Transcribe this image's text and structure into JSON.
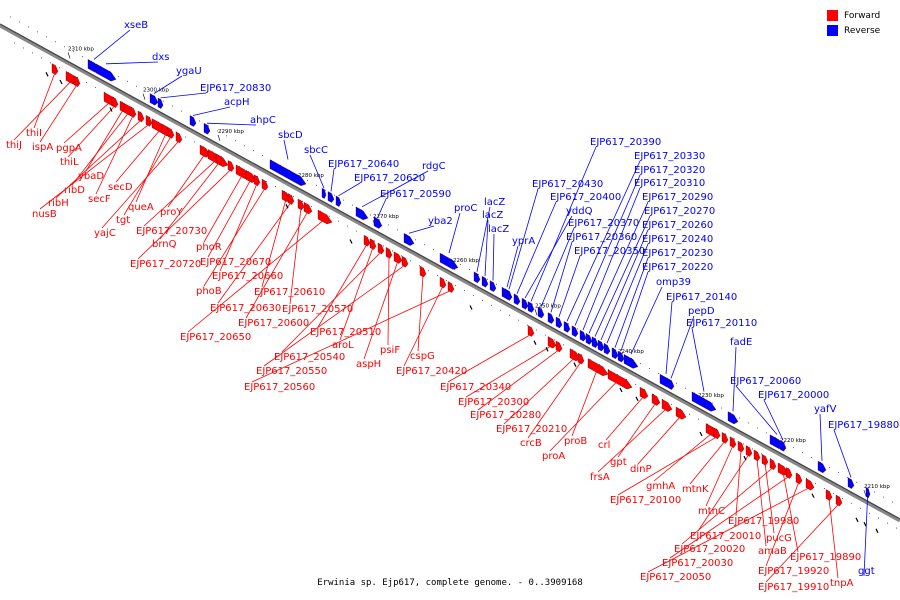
{
  "caption": "Erwinia sp. Ejp617, complete genome. - 0..3909168",
  "legend": {
    "forward": {
      "label": "Forward",
      "color": "#ff0000"
    },
    "reverse": {
      "label": "Reverse",
      "color": "#0000ff"
    }
  },
  "axis_ticks": [
    "2310 kbp",
    "2300 kbp",
    "2290 kbp",
    "2280 kbp",
    "2270 kbp",
    "2260 kbp",
    "2250 kbp",
    "2240 kbp",
    "2230 kbp",
    "2220 kbp",
    "2210 kbp"
  ],
  "genes_reverse": [
    "xseB",
    "dxs",
    "ygaU",
    "EJP617_20830",
    "acpH",
    "ahpC",
    "sbcD",
    "sbcC",
    "EJP617_20640",
    "EJP617_20620",
    "rdgC",
    "EJP617_20590",
    "yba2",
    "proC",
    "lacZ",
    "lacZ",
    "lacZ",
    "yprA",
    "EJP617_20430",
    "EJP617_20400",
    "yddQ",
    "EJP617_20390",
    "EJP617_20370",
    "EJP617_20360",
    "EJP617_20350",
    "EJP617_20330",
    "EJP617_20320",
    "EJP617_20310",
    "EJP617_20290",
    "EJP617_20270",
    "EJP617_20260",
    "EJP617_20240",
    "EJP617_20230",
    "EJP617_20220",
    "omp39",
    "EJP617_20140",
    "pepD",
    "EJP617_20110",
    "fadE",
    "EJP617_20060",
    "EJP617_20000",
    "yafV",
    "EJP617_19880",
    "ggt"
  ],
  "genes_forward": [
    "thiI",
    "thiJ",
    "ispA",
    "pgpA",
    "thiL",
    "ybaD",
    "ribD",
    "secF",
    "ribH",
    "nusB",
    "secD",
    "queA",
    "tgt",
    "yajC",
    "proY",
    "EJP617_20730",
    "brnQ",
    "EJP617_20720",
    "phoR",
    "EJP617_20670",
    "EJP617_20660",
    "phoB",
    "EJP617_20610",
    "EJP617_20630",
    "EJP617_20570",
    "EJP617_20600",
    "EJP617_20650",
    "EJP617_20510",
    "aroL",
    "EJP617_20540",
    "psiF",
    "aspH",
    "EJP617_20550",
    "cspG",
    "EJP617_20420",
    "EJP617_20560",
    "EJP617_20340",
    "EJP617_20300",
    "EJP617_20280",
    "EJP617_20210",
    "crcB",
    "proB",
    "proA",
    "crl",
    "gpt",
    "frsA",
    "dinP",
    "gmhA",
    "EJP617_20100",
    "mtnK",
    "mtnC",
    "EJP617_19980",
    "EJP617_20010",
    "amaB",
    "pucG",
    "EJP617_20020",
    "EJP617_19890",
    "EJP617_20030",
    "EJP617_19920",
    "EJP617_20050",
    "tnpA",
    "EJP617_19910"
  ]
}
